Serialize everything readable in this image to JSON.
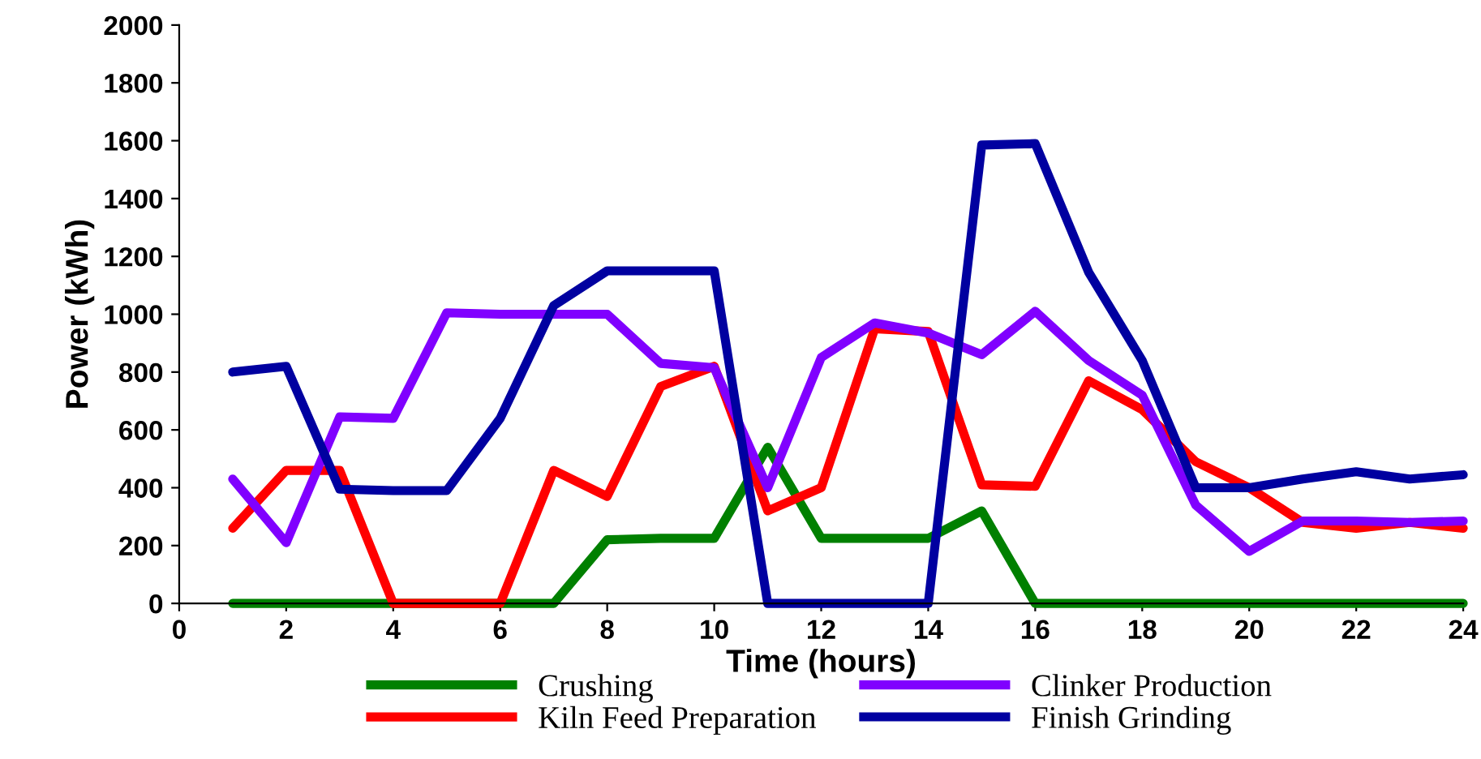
{
  "chart_data": {
    "type": "line",
    "xlabel": "Time (hours)",
    "ylabel": "Power (kWh)",
    "x": [
      1,
      2,
      3,
      4,
      5,
      6,
      7,
      8,
      9,
      10,
      11,
      12,
      13,
      14,
      15,
      16,
      17,
      18,
      19,
      20,
      21,
      22,
      23,
      24
    ],
    "xlim": [
      0,
      24
    ],
    "xticks": [
      0,
      2,
      4,
      6,
      8,
      10,
      12,
      14,
      16,
      18,
      20,
      22,
      24
    ],
    "ylim": [
      0,
      2000
    ],
    "yticks": [
      0,
      200,
      400,
      600,
      800,
      1000,
      1200,
      1400,
      1600,
      1800,
      2000
    ],
    "grid": false,
    "legend": "bottom",
    "marker": "none",
    "line_style": "solid",
    "series": [
      {
        "name": "Crushing",
        "color": "#008000",
        "values": [
          0,
          0,
          0,
          0,
          0,
          0,
          0,
          220,
          225,
          225,
          540,
          225,
          225,
          225,
          320,
          0,
          0,
          0,
          0,
          0,
          0,
          0,
          0,
          0
        ]
      },
      {
        "name": "Kiln Feed Preparation",
        "color": "#ff0000",
        "values": [
          260,
          460,
          460,
          0,
          0,
          0,
          460,
          370,
          750,
          820,
          320,
          400,
          950,
          940,
          410,
          405,
          770,
          670,
          490,
          400,
          280,
          260,
          280,
          260
        ]
      },
      {
        "name": "Clinker Production",
        "color": "#8000ff",
        "values": [
          430,
          210,
          645,
          640,
          1005,
          1000,
          1000,
          1000,
          830,
          815,
          400,
          850,
          970,
          935,
          860,
          1010,
          840,
          720,
          340,
          180,
          285,
          285,
          280,
          285
        ]
      },
      {
        "name": "Finish Grinding",
        "color": "#0000a0",
        "values": [
          800,
          820,
          395,
          390,
          390,
          640,
          1030,
          1150,
          1150,
          1150,
          0,
          0,
          0,
          0,
          1585,
          1590,
          1145,
          840,
          400,
          400,
          430,
          455,
          430,
          445
        ]
      }
    ]
  }
}
